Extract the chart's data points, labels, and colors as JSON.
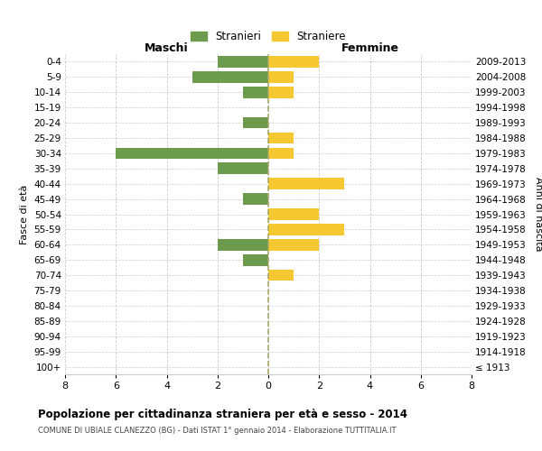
{
  "age_groups": [
    "100+",
    "95-99",
    "90-94",
    "85-89",
    "80-84",
    "75-79",
    "70-74",
    "65-69",
    "60-64",
    "55-59",
    "50-54",
    "45-49",
    "40-44",
    "35-39",
    "30-34",
    "25-29",
    "20-24",
    "15-19",
    "10-14",
    "5-9",
    "0-4"
  ],
  "birth_years": [
    "≤ 1913",
    "1914-1918",
    "1919-1923",
    "1924-1928",
    "1929-1933",
    "1934-1938",
    "1939-1943",
    "1944-1948",
    "1949-1953",
    "1954-1958",
    "1959-1963",
    "1964-1968",
    "1969-1973",
    "1974-1978",
    "1979-1983",
    "1984-1988",
    "1989-1993",
    "1994-1998",
    "1999-2003",
    "2004-2008",
    "2009-2013"
  ],
  "maschi": [
    0,
    0,
    0,
    0,
    0,
    0,
    0,
    1,
    2,
    0,
    0,
    1,
    0,
    2,
    6,
    0,
    1,
    0,
    1,
    3,
    2
  ],
  "femmine": [
    0,
    0,
    0,
    0,
    0,
    0,
    1,
    0,
    2,
    3,
    2,
    0,
    3,
    0,
    1,
    1,
    0,
    0,
    1,
    1,
    2
  ],
  "color_maschi": "#6d9b4e",
  "color_femmine": "#f5c731",
  "background_color": "#ffffff",
  "grid_color": "#cccccc",
  "title": "Popolazione per cittadinanza straniera per età e sesso - 2014",
  "subtitle": "COMUNE DI UBIALE CLANEZZO (BG) - Dati ISTAT 1° gennaio 2014 - Elaborazione TUTTITALIA.IT",
  "ylabel_left": "Fasce di età",
  "ylabel_right": "Anni di nascita",
  "xlabel_maschi": "Maschi",
  "xlabel_femmine": "Femmine",
  "legend_maschi": "Stranieri",
  "legend_femmine": "Straniere",
  "xlim": 8,
  "center_line_color": "#aaa86b"
}
